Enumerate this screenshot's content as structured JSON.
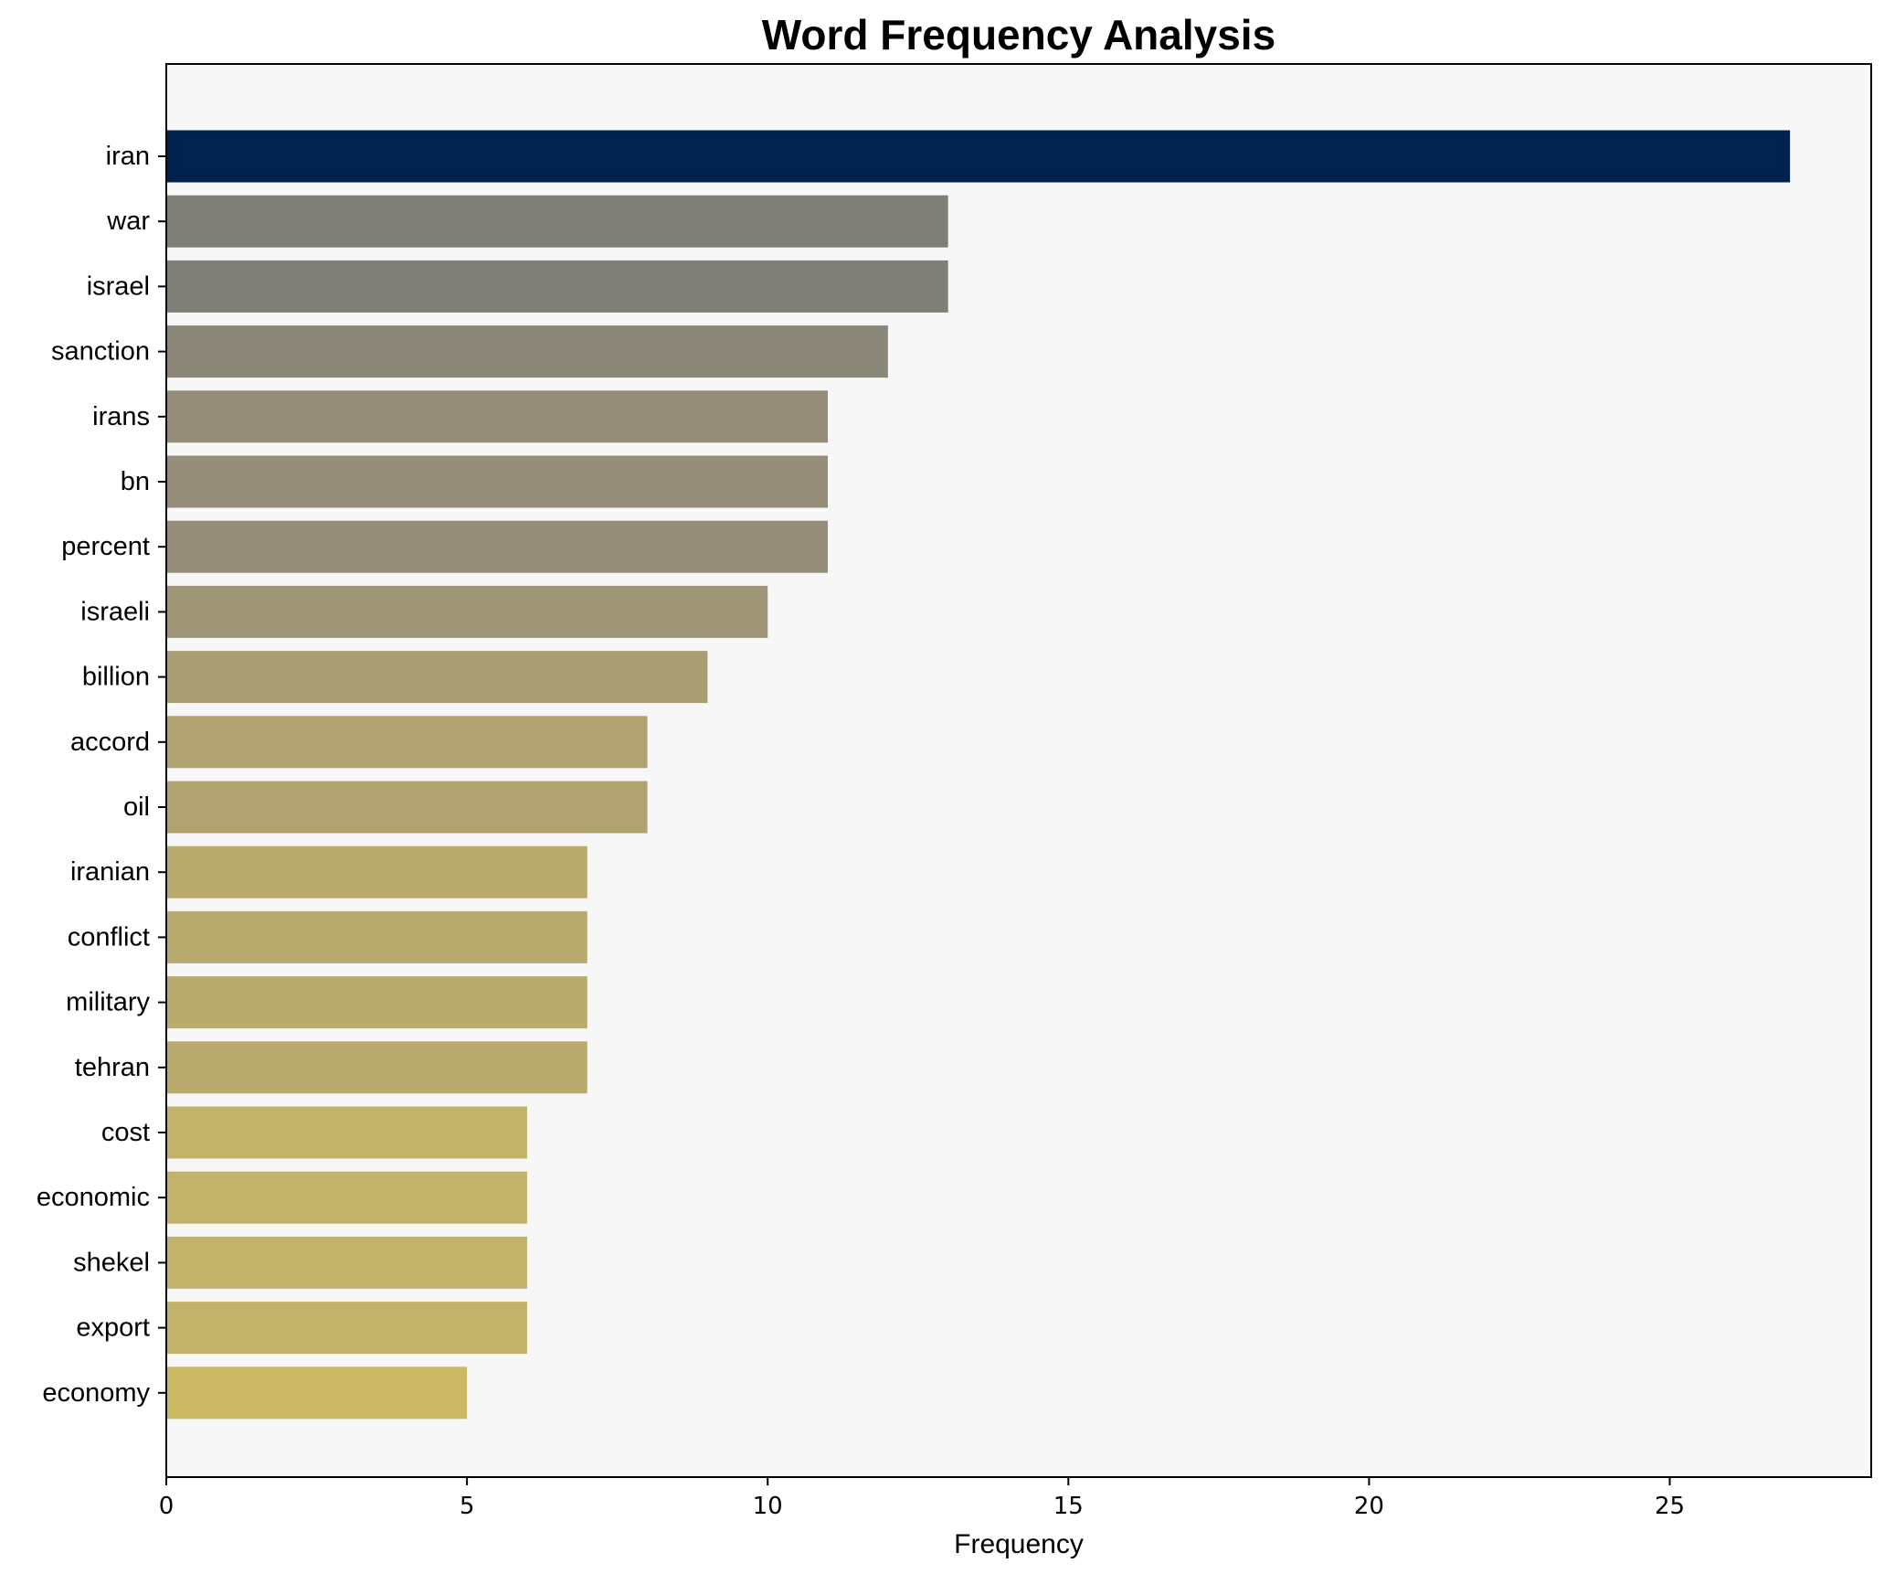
{
  "chart_data": {
    "type": "bar",
    "orientation": "horizontal",
    "title": "Word Frequency Analysis",
    "xlabel": "Frequency",
    "ylabel": "",
    "categories": [
      "iran",
      "war",
      "israel",
      "sanction",
      "irans",
      "bn",
      "percent",
      "israeli",
      "billion",
      "accord",
      "oil",
      "iranian",
      "conflict",
      "military",
      "tehran",
      "cost",
      "economic",
      "shekel",
      "export",
      "economy"
    ],
    "values": [
      27,
      13,
      13,
      12,
      11,
      11,
      11,
      10,
      9,
      8,
      8,
      7,
      7,
      7,
      7,
      6,
      6,
      6,
      6,
      5
    ],
    "bar_colors": [
      "#00224e",
      "#7f7f78",
      "#7f7f78",
      "#8a8678",
      "#958d79",
      "#958d79",
      "#958d79",
      "#9f9677",
      "#a99d73",
      "#b0a271",
      "#b0a271",
      "#b9aa6d",
      "#b9aa6d",
      "#b9aa6d",
      "#b9aa6d",
      "#c2b269",
      "#c2b269",
      "#c2b269",
      "#c2b269",
      "#cbba63"
    ],
    "xlim": [
      0,
      28.35
    ],
    "xticks": [
      0,
      5,
      10,
      15,
      20,
      25
    ],
    "grid": false,
    "legend": "none",
    "plot_background": "#f7f7f7"
  }
}
